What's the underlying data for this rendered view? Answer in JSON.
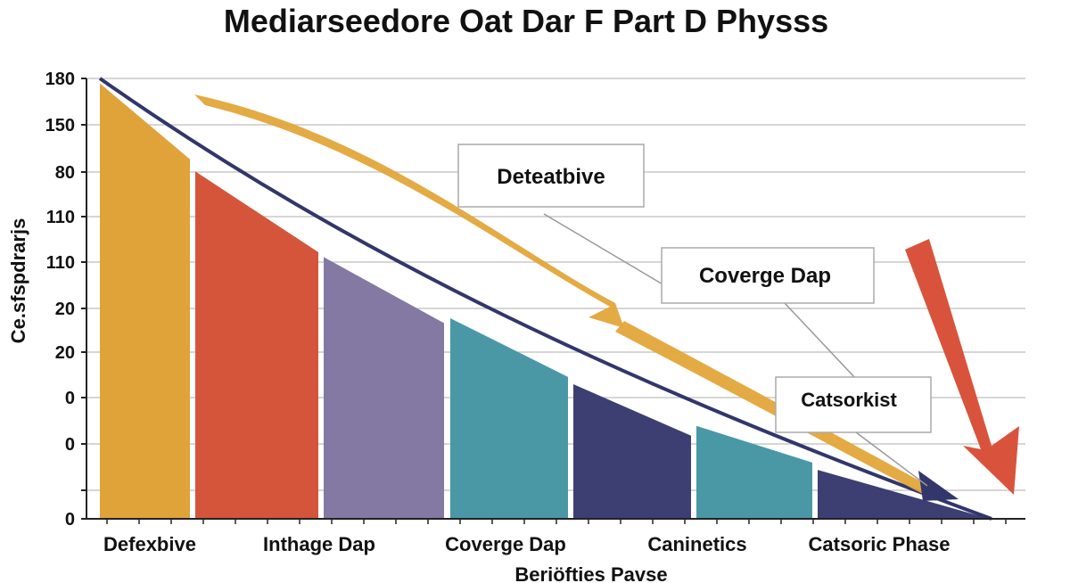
{
  "chart_data": {
    "type": "area",
    "title": "Mediarseedore Oat Dar F Part D Physss",
    "xlabel": "Beriöfties Pavse",
    "ylabel": "Ce.sfspdrarjs",
    "ylim": [
      0,
      180
    ],
    "y_tick_labels": [
      "180",
      "150",
      "80",
      "110",
      "110",
      "20",
      "20",
      "0",
      "0",
      "",
      "0"
    ],
    "categories": [
      "Defexbive",
      "Inthage Dap",
      "Coverge  Dap",
      "Caninetics",
      "Catsoric Phase"
    ],
    "grid": true,
    "segments": [
      {
        "start": 178,
        "end": 147,
        "color": "#E0A33A"
      },
      {
        "start": 142,
        "end": 109,
        "color": "#D5553B"
      },
      {
        "start": 107,
        "end": 80,
        "color": "#8479A3"
      },
      {
        "start": 82,
        "end": 58,
        "color": "#4A98A6"
      },
      {
        "start": 55,
        "end": 34,
        "color": "#3D3F73"
      },
      {
        "start": 38,
        "end": 23,
        "color": "#4A98A6"
      },
      {
        "start": 20,
        "end": 0,
        "color": "#3D3F73"
      }
    ],
    "trend_line_color": "#33366B",
    "annotations": [
      "Deteatbive",
      "Coverge Dap",
      "Catsorkist"
    ],
    "arrow_colors": {
      "trend": "#E3A53A",
      "drop": "#D9533C"
    }
  }
}
